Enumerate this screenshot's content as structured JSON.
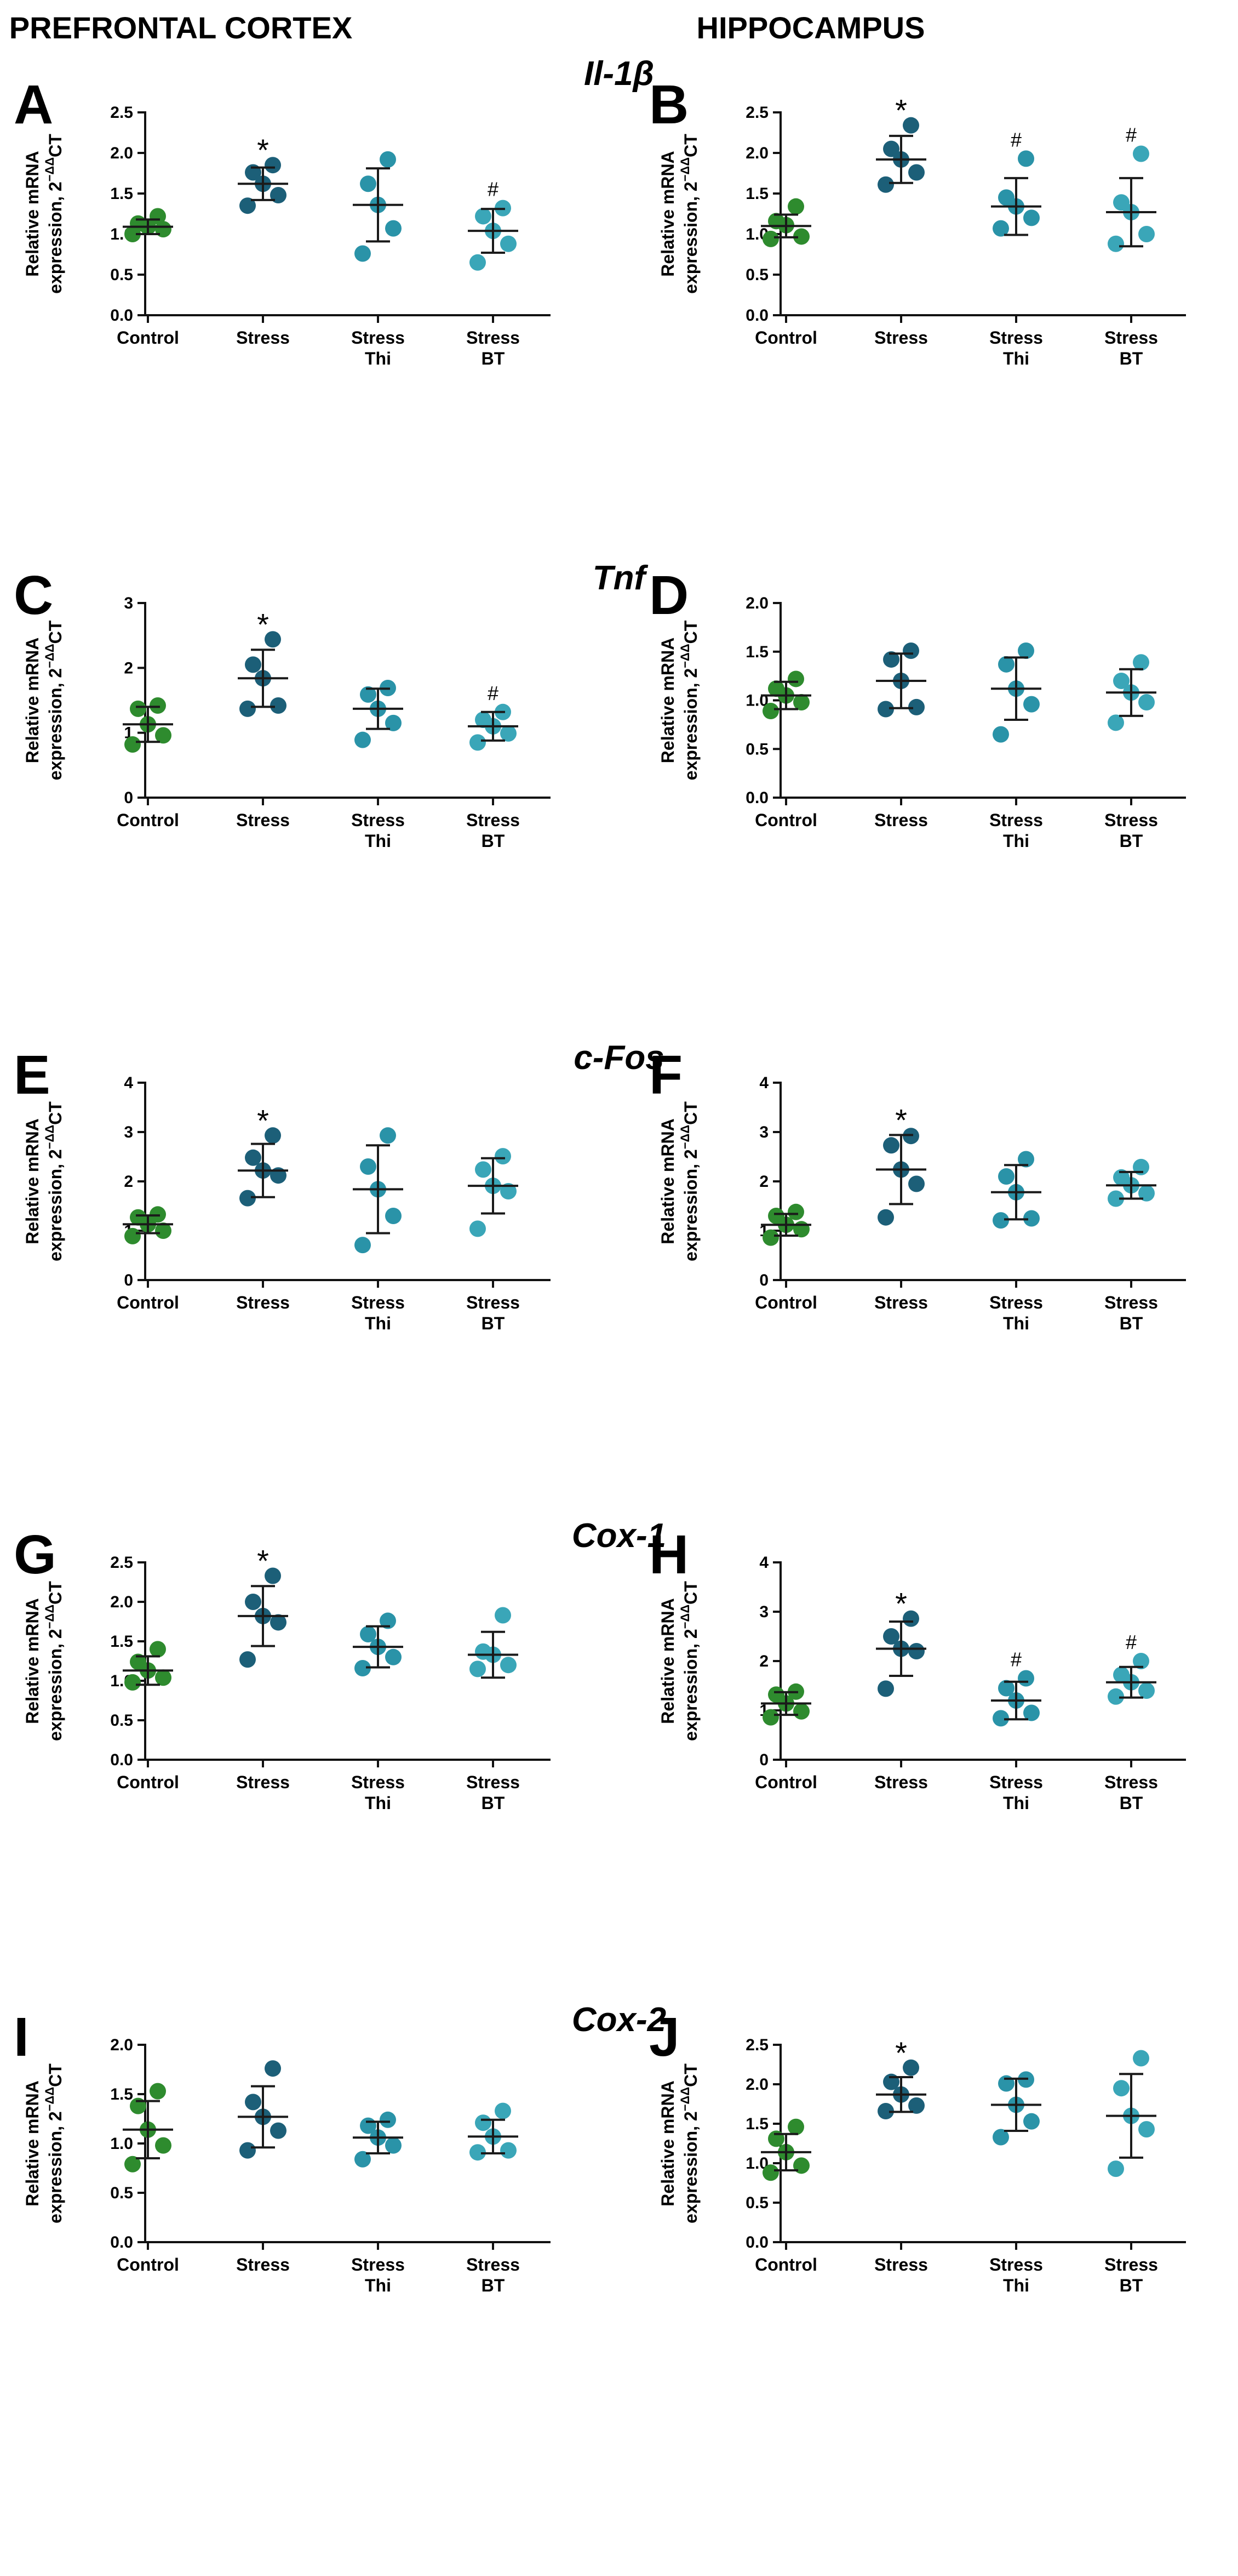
{
  "columns": [
    "PREFRONTAL CORTEX",
    "HIPPOCAMPUS"
  ],
  "genes": [
    "Il-1β",
    "Tnf",
    "c-Fos",
    "Cox-1",
    "Cox-2"
  ],
  "ylabel_line1": "Relative mRNA",
  "ylabel_line2_prefix": "expression, 2",
  "ylabel_superscript": "−ΔΔ",
  "ylabel_suffix": "CT",
  "categories": [
    [
      "Control"
    ],
    [
      "Stress"
    ],
    [
      "Stress",
      "Thi"
    ],
    [
      "Stress",
      "BT"
    ]
  ],
  "colors": {
    "Control": "#2e8b2e",
    "Stress": "#1c5f78",
    "Stress Thi": "#2a93a8",
    "Stress BT": "#3aa6b8",
    "errorbar": "#1a1a1a",
    "axis": "#111111"
  },
  "chart_data": [
    {
      "type": "scatter",
      "panel": "A",
      "region": "PREFRONTAL CORTEX",
      "gene": "Il-1β",
      "ylim": [
        0,
        2.5
      ],
      "yticks": [
        "0.0",
        "0.5",
        "1.0",
        "1.5",
        "2.0",
        "2.5"
      ],
      "groups": [
        {
          "name": "Control",
          "mean": 1.09,
          "sd": 0.09,
          "points": [
            1.0,
            1.06,
            1.09,
            1.13,
            1.22
          ],
          "mark": ""
        },
        {
          "name": "Stress",
          "mean": 1.62,
          "sd": 0.2,
          "points": [
            1.35,
            1.48,
            1.62,
            1.76,
            1.85
          ],
          "mark": "*"
        },
        {
          "name": "Stress Thi",
          "mean": 1.36,
          "sd": 0.45,
          "points": [
            0.76,
            1.07,
            1.36,
            1.62,
            1.92
          ],
          "mark": ""
        },
        {
          "name": "Stress BT",
          "mean": 1.04,
          "sd": 0.27,
          "points": [
            0.65,
            0.88,
            1.04,
            1.22,
            1.32
          ],
          "mark": "#"
        }
      ]
    },
    {
      "type": "scatter",
      "panel": "B",
      "region": "HIPPOCAMPUS",
      "gene": "Il-1β",
      "ylim": [
        0,
        2.5
      ],
      "yticks": [
        "0.0",
        "0.5",
        "1.0",
        "1.5",
        "2.0",
        "2.5"
      ],
      "groups": [
        {
          "name": "Control",
          "mean": 1.1,
          "sd": 0.14,
          "points": [
            0.94,
            0.97,
            1.11,
            1.16,
            1.34
          ],
          "mark": ""
        },
        {
          "name": "Stress",
          "mean": 1.92,
          "sd": 0.29,
          "points": [
            1.61,
            1.76,
            1.92,
            2.05,
            2.34
          ],
          "mark": "*"
        },
        {
          "name": "Stress Thi",
          "mean": 1.34,
          "sd": 0.35,
          "points": [
            1.07,
            1.2,
            1.34,
            1.45,
            1.93
          ],
          "mark": "#"
        },
        {
          "name": "Stress BT",
          "mean": 1.27,
          "sd": 0.42,
          "points": [
            0.88,
            1.0,
            1.27,
            1.39,
            1.99
          ],
          "mark": "#"
        }
      ]
    },
    {
      "type": "scatter",
      "panel": "C",
      "region": "PREFRONTAL CORTEX",
      "gene": "Tnf",
      "ylim": [
        0,
        3
      ],
      "yticks": [
        "0",
        "1",
        "2",
        "3"
      ],
      "groups": [
        {
          "name": "Control",
          "mean": 1.13,
          "sd": 0.27,
          "points": [
            0.82,
            0.96,
            1.13,
            1.37,
            1.42
          ],
          "mark": ""
        },
        {
          "name": "Stress",
          "mean": 1.84,
          "sd": 0.44,
          "points": [
            1.37,
            1.42,
            1.84,
            2.05,
            2.44
          ],
          "mark": "*"
        },
        {
          "name": "Stress Thi",
          "mean": 1.37,
          "sd": 0.31,
          "points": [
            0.89,
            1.15,
            1.37,
            1.59,
            1.69
          ],
          "mark": ""
        },
        {
          "name": "Stress BT",
          "mean": 1.1,
          "sd": 0.22,
          "points": [
            0.85,
            0.99,
            1.1,
            1.2,
            1.32
          ],
          "mark": "#"
        }
      ]
    },
    {
      "type": "scatter",
      "panel": "D",
      "region": "HIPPOCAMPUS",
      "gene": "Tnf",
      "ylim": [
        0,
        2.0
      ],
      "yticks": [
        "0.0",
        "0.5",
        "1.0",
        "1.5",
        "2.0"
      ],
      "groups": [
        {
          "name": "Control",
          "mean": 1.05,
          "sd": 0.14,
          "points": [
            0.89,
            0.98,
            1.05,
            1.12,
            1.22
          ],
          "mark": ""
        },
        {
          "name": "Stress",
          "mean": 1.2,
          "sd": 0.28,
          "points": [
            0.91,
            0.93,
            1.2,
            1.42,
            1.51
          ],
          "mark": ""
        },
        {
          "name": "Stress Thi",
          "mean": 1.12,
          "sd": 0.32,
          "points": [
            0.65,
            0.96,
            1.12,
            1.37,
            1.51
          ],
          "mark": ""
        },
        {
          "name": "Stress BT",
          "mean": 1.08,
          "sd": 0.24,
          "points": [
            0.77,
            0.98,
            1.08,
            1.2,
            1.39
          ],
          "mark": ""
        }
      ]
    },
    {
      "type": "scatter",
      "panel": "E",
      "region": "PREFRONTAL CORTEX",
      "gene": "c-Fos",
      "ylim": [
        0,
        4
      ],
      "yticks": [
        "0",
        "1",
        "2",
        "3",
        "4"
      ],
      "groups": [
        {
          "name": "Control",
          "mean": 1.13,
          "sd": 0.18,
          "points": [
            0.89,
            1.0,
            1.13,
            1.27,
            1.33
          ],
          "mark": ""
        },
        {
          "name": "Stress",
          "mean": 2.22,
          "sd": 0.54,
          "points": [
            1.66,
            2.12,
            2.22,
            2.48,
            2.93
          ],
          "mark": "*"
        },
        {
          "name": "Stress Thi",
          "mean": 1.84,
          "sd": 0.89,
          "points": [
            0.71,
            1.3,
            1.84,
            2.3,
            2.93
          ],
          "mark": ""
        },
        {
          "name": "Stress BT",
          "mean": 1.91,
          "sd": 0.56,
          "points": [
            1.04,
            1.8,
            1.91,
            2.24,
            2.51
          ],
          "mark": ""
        }
      ]
    },
    {
      "type": "scatter",
      "panel": "F",
      "region": "HIPPOCAMPUS",
      "gene": "c-Fos",
      "ylim": [
        0,
        4
      ],
      "yticks": [
        "0",
        "1",
        "2",
        "3",
        "4"
      ],
      "groups": [
        {
          "name": "Control",
          "mean": 1.12,
          "sd": 0.22,
          "points": [
            0.86,
            1.03,
            1.12,
            1.3,
            1.38
          ],
          "mark": ""
        },
        {
          "name": "Stress",
          "mean": 2.24,
          "sd": 0.7,
          "points": [
            1.27,
            1.95,
            2.24,
            2.73,
            2.92
          ],
          "mark": "*"
        },
        {
          "name": "Stress Thi",
          "mean": 1.78,
          "sd": 0.55,
          "points": [
            1.21,
            1.25,
            1.78,
            2.1,
            2.45
          ],
          "mark": ""
        },
        {
          "name": "Stress BT",
          "mean": 1.92,
          "sd": 0.27,
          "points": [
            1.65,
            1.76,
            1.92,
            2.08,
            2.29
          ],
          "mark": ""
        }
      ]
    },
    {
      "type": "scatter",
      "panel": "G",
      "region": "PREFRONTAL CORTEX",
      "gene": "Cox-1",
      "ylim": [
        0,
        2.5
      ],
      "yticks": [
        "0.0",
        "0.5",
        "1.0",
        "1.5",
        "2.0",
        "2.5"
      ],
      "groups": [
        {
          "name": "Control",
          "mean": 1.13,
          "sd": 0.18,
          "points": [
            0.98,
            1.04,
            1.13,
            1.24,
            1.4
          ],
          "mark": ""
        },
        {
          "name": "Stress",
          "mean": 1.82,
          "sd": 0.38,
          "points": [
            1.27,
            1.74,
            1.82,
            2.0,
            2.33
          ],
          "mark": "*"
        },
        {
          "name": "Stress Thi",
          "mean": 1.43,
          "sd": 0.26,
          "points": [
            1.16,
            1.3,
            1.43,
            1.59,
            1.76
          ],
          "mark": ""
        },
        {
          "name": "Stress BT",
          "mean": 1.33,
          "sd": 0.29,
          "points": [
            1.15,
            1.2,
            1.33,
            1.37,
            1.83
          ],
          "mark": ""
        }
      ]
    },
    {
      "type": "scatter",
      "panel": "H",
      "region": "HIPPOCAMPUS",
      "gene": "Cox-1",
      "ylim": [
        0,
        4
      ],
      "yticks": [
        "0",
        "1",
        "2",
        "3",
        "4"
      ],
      "groups": [
        {
          "name": "Control",
          "mean": 1.14,
          "sd": 0.23,
          "points": [
            0.86,
            0.98,
            1.14,
            1.32,
            1.38
          ],
          "mark": ""
        },
        {
          "name": "Stress",
          "mean": 2.25,
          "sd": 0.55,
          "points": [
            1.44,
            2.2,
            2.25,
            2.5,
            2.86
          ],
          "mark": "*"
        },
        {
          "name": "Stress Thi",
          "mean": 1.2,
          "sd": 0.38,
          "points": [
            0.84,
            0.95,
            1.2,
            1.45,
            1.65
          ],
          "mark": "#"
        },
        {
          "name": "Stress BT",
          "mean": 1.57,
          "sd": 0.31,
          "points": [
            1.28,
            1.4,
            1.57,
            1.72,
            2.0
          ],
          "mark": "#"
        }
      ]
    },
    {
      "type": "scatter",
      "panel": "I",
      "region": "PREFRONTAL CORTEX",
      "gene": "Cox-2",
      "ylim": [
        0,
        2.0
      ],
      "yticks": [
        "0.0",
        "0.5",
        "1.0",
        "1.5",
        "2.0"
      ],
      "groups": [
        {
          "name": "Control",
          "mean": 1.14,
          "sd": 0.29,
          "points": [
            0.79,
            0.98,
            1.14,
            1.38,
            1.53
          ],
          "mark": ""
        },
        {
          "name": "Stress",
          "mean": 1.27,
          "sd": 0.31,
          "points": [
            0.93,
            1.13,
            1.27,
            1.42,
            1.76
          ],
          "mark": ""
        },
        {
          "name": "Stress Thi",
          "mean": 1.06,
          "sd": 0.16,
          "points": [
            0.84,
            0.98,
            1.06,
            1.18,
            1.24
          ],
          "mark": ""
        },
        {
          "name": "Stress BT",
          "mean": 1.07,
          "sd": 0.17,
          "points": [
            0.91,
            0.93,
            1.07,
            1.21,
            1.33
          ],
          "mark": ""
        }
      ]
    },
    {
      "type": "scatter",
      "panel": "J",
      "region": "HIPPOCAMPUS",
      "gene": "Cox-2",
      "ylim": [
        0,
        2.5
      ],
      "yticks": [
        "0.0",
        "0.5",
        "1.0",
        "1.5",
        "2.0",
        "2.5"
      ],
      "groups": [
        {
          "name": "Control",
          "mean": 1.14,
          "sd": 0.23,
          "points": [
            0.88,
            0.97,
            1.14,
            1.31,
            1.46
          ],
          "mark": ""
        },
        {
          "name": "Stress",
          "mean": 1.87,
          "sd": 0.22,
          "points": [
            1.66,
            1.73,
            1.87,
            2.03,
            2.21
          ],
          "mark": "*"
        },
        {
          "name": "Stress Thi",
          "mean": 1.74,
          "sd": 0.33,
          "points": [
            1.33,
            1.53,
            1.74,
            2.01,
            2.06
          ],
          "mark": ""
        },
        {
          "name": "Stress BT",
          "mean": 1.6,
          "sd": 0.53,
          "points": [
            0.93,
            1.43,
            1.6,
            1.95,
            2.33
          ],
          "mark": ""
        }
      ]
    }
  ]
}
